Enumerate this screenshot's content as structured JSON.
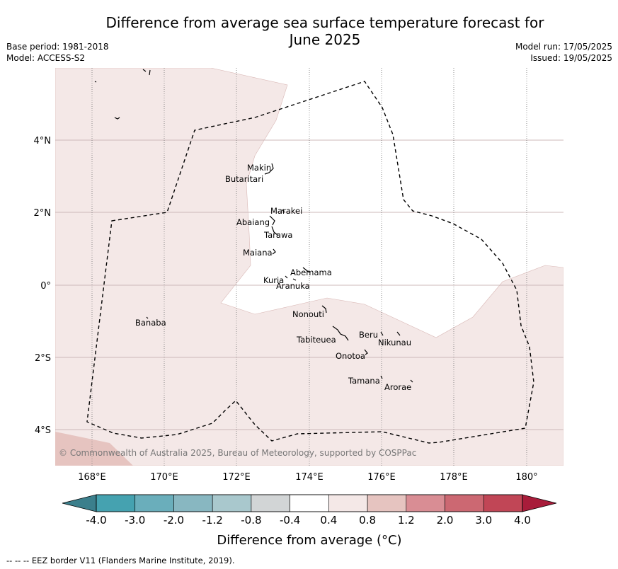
{
  "header": {
    "title_line1": "Difference from average sea surface temperature forecast for",
    "title_line2": "June 2025",
    "base_period": "Base period: 1981-2018",
    "model": "Model: ACCESS-S2",
    "model_run": "Model run: 17/05/2025",
    "issued": "Issued: 19/05/2025"
  },
  "map": {
    "lat_labels": [
      "4°N",
      "2°N",
      "0°",
      "2°S",
      "4°S"
    ],
    "lon_labels": [
      "168°E",
      "170°E",
      "172°E",
      "174°E",
      "176°E",
      "178°E",
      "180°"
    ],
    "islands": [
      "Makin",
      "Butaritari",
      "Marakei",
      "Abaiang",
      "Tarawa",
      "Maiana",
      "Abemama",
      "Kuria",
      "Aranuka",
      "Nonouti",
      "Tabiteuea",
      "Beru",
      "Nikunau",
      "Onotoa",
      "Tamana",
      "Arorae",
      "Banaba"
    ],
    "copyright": "© Commonwealth of Australia 2025, Bureau of Meteorology, supported by COSPPac",
    "colors": {
      "anomaly_0_4_to_0_8": "#f4e8e7",
      "anomaly_0_8_to_1_2": "#e6c4c0",
      "neutral": "#ffffff",
      "eez_border": "#000000"
    }
  },
  "colorbar": {
    "tick_labels": [
      "-4.0",
      "-3.0",
      "-2.0",
      "-1.2",
      "-0.8",
      "-0.4",
      "0.4",
      "0.8",
      "1.2",
      "2.0",
      "3.0",
      "4.0"
    ],
    "colors": [
      "#3b7f8c",
      "#45a2b0",
      "#6aaebb",
      "#88b7c1",
      "#a9c8cd",
      "#d2d5d6",
      "#ffffff",
      "#f4e8e7",
      "#e6c4c0",
      "#d98d94",
      "#cc6872",
      "#c14656",
      "#a81c3a"
    ],
    "title": "Difference from average (°C)"
  },
  "footer": {
    "legend": "--  --  -- EEZ border V11 (Flanders Marine Institute, 2019)."
  }
}
